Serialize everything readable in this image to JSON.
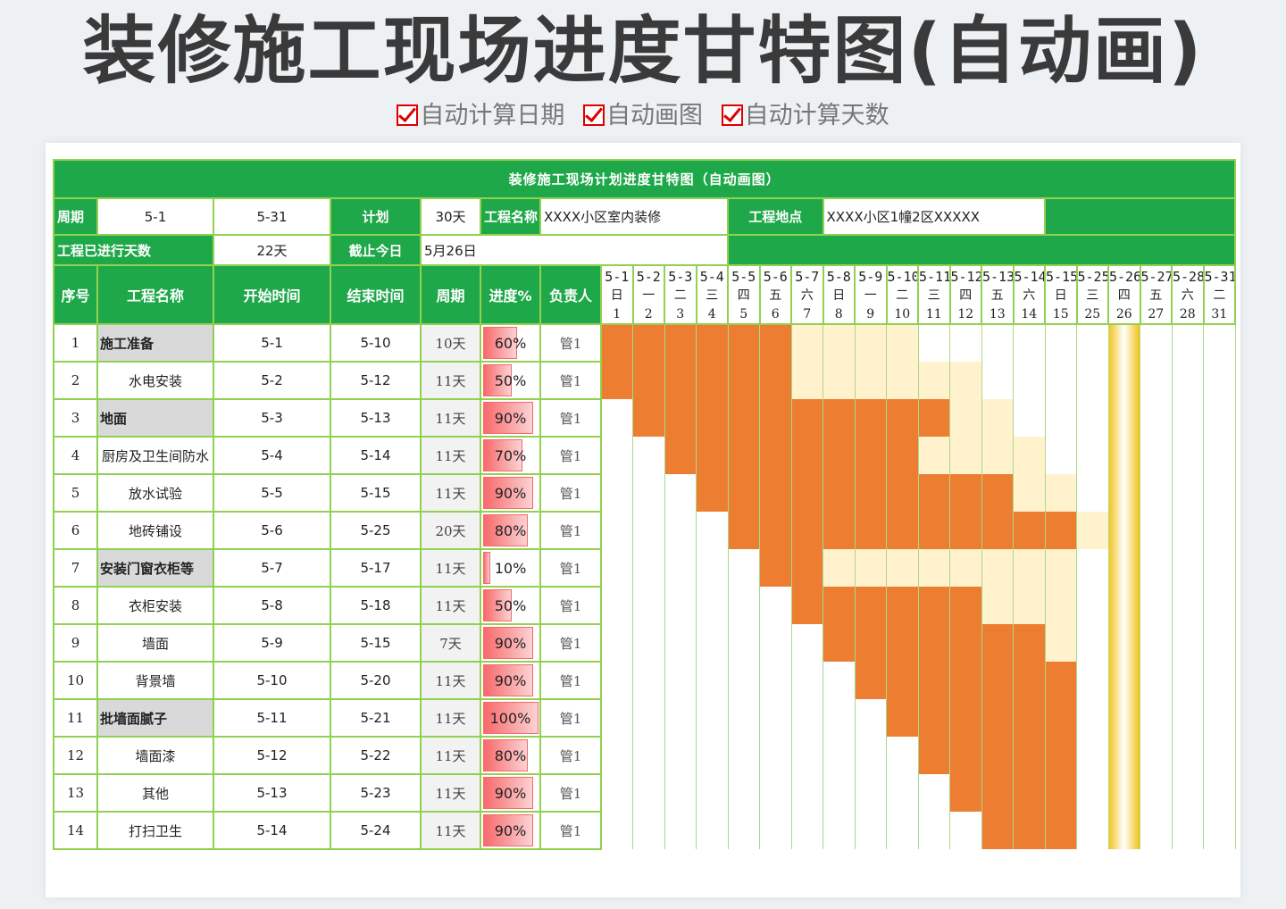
{
  "poster": {
    "title": "装修施工现场进度甘特图(自动画)",
    "features": [
      "自动计算日期",
      "自动画图",
      "自动计算天数"
    ]
  },
  "sheet": {
    "title": "装修施工现场计划进度甘特图（自动画图）",
    "info": {
      "period_label": "周期",
      "start": "5-1",
      "end": "5-31",
      "plan_label": "计划",
      "plan_value": "30天",
      "project_name_label": "工程名称",
      "project_name": "XXXX小区室内装修",
      "location_label": "工程地点",
      "location": "XXXX小区1幢2区XXXXX",
      "elapsed_label": "工程已进行天数",
      "elapsed_value": "22天",
      "today_label": "截止今日",
      "today_value": "5月26日"
    },
    "headers": [
      "序号",
      "工程名称",
      "开始时间",
      "结束时间",
      "周期",
      "进度%",
      "负责人"
    ],
    "colors": {
      "green": "#1fa84a",
      "border": "#92d050",
      "done": "#ed7d31",
      "planned": "#fff2cc",
      "today": "#f3c31c"
    }
  },
  "chart_data": {
    "type": "gantt",
    "title": "装修施工现场计划进度甘特图（自动画图）",
    "today_column": 16,
    "days": [
      {
        "date": "5-1",
        "weekday": "日",
        "day": "1"
      },
      {
        "date": "5-2",
        "weekday": "一",
        "day": "2"
      },
      {
        "date": "5-3",
        "weekday": "二",
        "day": "3"
      },
      {
        "date": "5-4",
        "weekday": "三",
        "day": "4"
      },
      {
        "date": "5-5",
        "weekday": "四",
        "day": "5"
      },
      {
        "date": "5-6",
        "weekday": "五",
        "day": "6"
      },
      {
        "date": "5-7",
        "weekday": "六",
        "day": "7"
      },
      {
        "date": "5-8",
        "weekday": "日",
        "day": "8"
      },
      {
        "date": "5-9",
        "weekday": "一",
        "day": "9"
      },
      {
        "date": "5-10",
        "weekday": "二",
        "day": "10"
      },
      {
        "date": "5-11",
        "weekday": "三",
        "day": "11"
      },
      {
        "date": "5-12",
        "weekday": "四",
        "day": "12"
      },
      {
        "date": "5-13",
        "weekday": "五",
        "day": "13"
      },
      {
        "date": "5-14",
        "weekday": "六",
        "day": "14"
      },
      {
        "date": "5-15",
        "weekday": "日",
        "day": "15"
      },
      {
        "date": "5-25",
        "weekday": "三",
        "day": "25"
      },
      {
        "date": "5-26",
        "weekday": "四",
        "day": "26"
      },
      {
        "date": "5-27",
        "weekday": "五",
        "day": "27"
      },
      {
        "date": "5-28",
        "weekday": "六",
        "day": "28"
      },
      {
        "date": "5-31",
        "weekday": "二",
        "day": "31"
      }
    ],
    "tasks": [
      {
        "seq": "1",
        "name": "施工准备",
        "group": true,
        "start": "5-1",
        "end": "5-10",
        "duration": "10天",
        "progress": 60,
        "progress_label": "60%",
        "owner": "管1",
        "cells": "OOOOOOLLLL.........."
      },
      {
        "seq": "2",
        "name": "水电安装",
        "group": false,
        "start": "5-2",
        "end": "5-12",
        "duration": "11天",
        "progress": 50,
        "progress_label": "50%",
        "owner": "管1",
        "cells": "OOOOOOLLLLLL........"
      },
      {
        "seq": "3",
        "name": "地面",
        "group": true,
        "start": "5-3",
        "end": "5-13",
        "duration": "11天",
        "progress": 90,
        "progress_label": "90%",
        "owner": "管1",
        "cells": ".OOOOOOOOOOLL......."
      },
      {
        "seq": "4",
        "name": "厨房及卫生间防水",
        "group": false,
        "start": "5-4",
        "end": "5-14",
        "duration": "11天",
        "progress": 70,
        "progress_label": "70%",
        "owner": "管1",
        "cells": "..OOOOOOOOLLLL......"
      },
      {
        "seq": "5",
        "name": "放水试验",
        "group": false,
        "start": "5-5",
        "end": "5-15",
        "duration": "11天",
        "progress": 90,
        "progress_label": "90%",
        "owner": "管1",
        "cells": "...OOOOOOOOOOLL....."
      },
      {
        "seq": "6",
        "name": "地砖铺设",
        "group": false,
        "start": "5-6",
        "end": "5-25",
        "duration": "20天",
        "progress": 80,
        "progress_label": "80%",
        "owner": "管1",
        "cells": "....OOOOOOOOOOOL...."
      },
      {
        "seq": "7",
        "name": "安装门窗衣柜等",
        "group": true,
        "start": "5-7",
        "end": "5-17",
        "duration": "11天",
        "progress": 10,
        "progress_label": "10%",
        "owner": "管1",
        "cells": ".....OOLLLLLLLL....."
      },
      {
        "seq": "8",
        "name": "衣柜安装",
        "group": false,
        "start": "5-8",
        "end": "5-18",
        "duration": "11天",
        "progress": 50,
        "progress_label": "50%",
        "owner": "管1",
        "cells": "......OOOOOOLLL....."
      },
      {
        "seq": "9",
        "name": "墙面",
        "group": false,
        "start": "5-9",
        "end": "5-15",
        "duration": "7天",
        "progress": 90,
        "progress_label": "90%",
        "owner": "管1",
        "cells": ".......OOOOOOOL....."
      },
      {
        "seq": "10",
        "name": "背景墙",
        "group": false,
        "start": "5-10",
        "end": "5-20",
        "duration": "11天",
        "progress": 90,
        "progress_label": "90%",
        "owner": "管1",
        "cells": "........OOOOOOO....."
      },
      {
        "seq": "11",
        "name": "批墙面腻子",
        "group": true,
        "start": "5-11",
        "end": "5-21",
        "duration": "11天",
        "progress": 100,
        "progress_label": "100%",
        "owner": "管1",
        "cells": ".........OOOOOO....."
      },
      {
        "seq": "12",
        "name": "墙面漆",
        "group": false,
        "start": "5-12",
        "end": "5-22",
        "duration": "11天",
        "progress": 80,
        "progress_label": "80%",
        "owner": "管1",
        "cells": "..........OOOOO....."
      },
      {
        "seq": "13",
        "name": "其他",
        "group": false,
        "start": "5-13",
        "end": "5-23",
        "duration": "11天",
        "progress": 90,
        "progress_label": "90%",
        "owner": "管1",
        "cells": "...........OOOO....."
      },
      {
        "seq": "14",
        "name": "打扫卫生",
        "group": false,
        "start": "5-14",
        "end": "5-24",
        "duration": "11天",
        "progress": 90,
        "progress_label": "90%",
        "owner": "管1",
        "cells": "............OOO....."
      }
    ]
  }
}
